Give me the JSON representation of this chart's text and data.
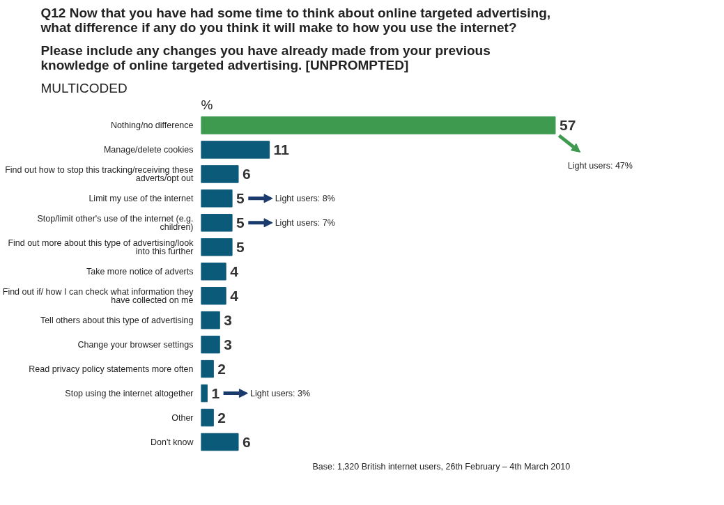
{
  "chart_data": {
    "type": "bar",
    "orientation": "horizontal",
    "title": "Q12  Now that you have had some time to think about online targeted advertising, what difference if any do you think it will make to how you use the internet?",
    "subtitle": "Please include any changes you have already made from your previous knowledge of online targeted advertising. [UNPROMPTED]",
    "xlabel": "%",
    "categories": [
      "Nothing/no difference",
      "Manage/delete cookies",
      "Find out how to stop this tracking/receiving these adverts/opt out",
      "Limit my use of the internet",
      "Stop/limit other's use of the internet (e.g. children)",
      "Find out more about this type of advertising/look into this further",
      "Take more notice of adverts",
      "Find out if/ how I can check what information they have collected on me",
      "Tell others about this type of advertising",
      "Change your browser settings",
      "Read privacy policy statements more often",
      "Stop using the internet altogether",
      "Other",
      "Don't know"
    ],
    "values": [
      57,
      11,
      6,
      5,
      5,
      5,
      4,
      4,
      3,
      3,
      2,
      1,
      2,
      6
    ],
    "colors": [
      "#3d9a4f",
      "#0c5a79",
      "#0c5a79",
      "#0c5a79",
      "#0c5a79",
      "#0c5a79",
      "#0c5a79",
      "#0c5a79",
      "#0c5a79",
      "#0c5a79",
      "#0c5a79",
      "#0c5a79",
      "#0c5a79",
      "#0c5a79"
    ],
    "data_labels": true,
    "tick_labels": "y",
    "grid": false,
    "annotations": [
      "Light users: 47%",
      "Light users: 8%",
      "Light users: 7%",
      "Light users: 3%",
      "MULTICODED",
      "Base: 1,320 British internet users, 26th February – 4th March 2010"
    ]
  }
}
